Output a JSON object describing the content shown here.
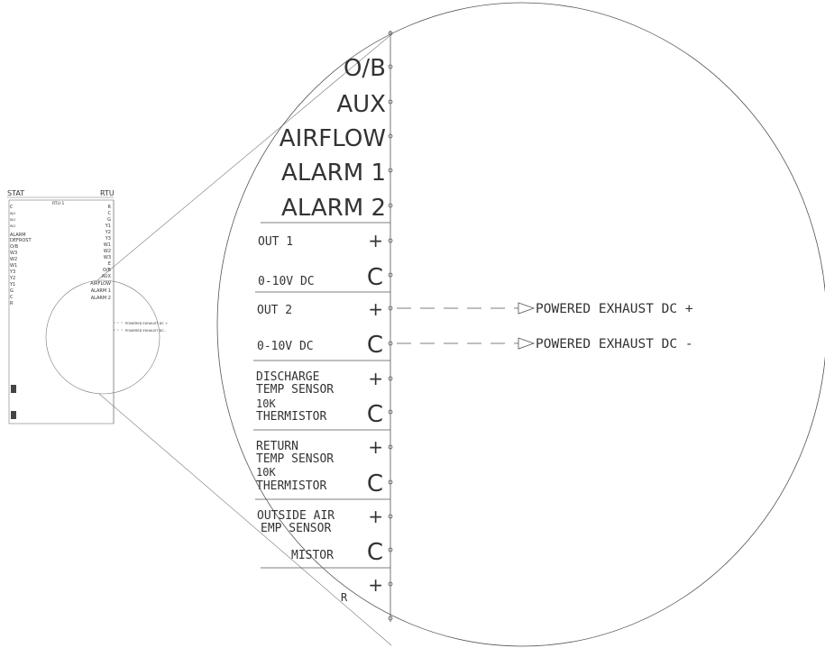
{
  "thumbnail": {
    "stat_label": "STAT",
    "rtu_label": "RTU",
    "rtu_id": "RTU-1",
    "left_terminals": [
      "C",
      "W/2",
      "W/2",
      "W/2",
      "ALARM",
      "DEFROST",
      "O/B",
      "W3",
      "W2",
      "W1",
      "Y3",
      "Y2",
      "Y1",
      "G",
      "C",
      "R"
    ],
    "right_terminals": [
      "R",
      "C",
      "G",
      "Y1",
      "Y2",
      "Y3",
      "W1",
      "W2",
      "W3",
      "E",
      "O/B",
      "AUX",
      "AIRFLOW",
      "ALARM 1",
      "ALARM 2"
    ],
    "exhaust_plus": "POWERED EXHAUST DC +",
    "exhaust_minus": "POWERED EXHAUST DC -"
  },
  "detail": {
    "large_labels": [
      "O/B",
      "AUX",
      "AIRFLOW",
      "ALARM 1",
      "ALARM 2"
    ],
    "groups": [
      {
        "lines": [
          "OUT 1"
        ],
        "lines2": [
          "0-10V DC"
        ],
        "plus": "+",
        "common": "C"
      },
      {
        "lines": [
          "OUT 2"
        ],
        "lines2": [
          "0-10V DC"
        ],
        "plus": "+",
        "common": "C"
      },
      {
        "lines": [
          "DISCHARGE",
          "TEMP SENSOR"
        ],
        "lines2": [
          "10K",
          "THERMISTOR"
        ],
        "plus": "+",
        "common": "C"
      },
      {
        "lines": [
          "RETURN",
          "TEMP SENSOR"
        ],
        "lines2": [
          "10K",
          "THERMISTOR"
        ],
        "plus": "+",
        "common": "C"
      },
      {
        "lines": [
          "OUTSIDE AIR",
          "EMP SENSOR"
        ],
        "lines2": [
          "MISTOR"
        ],
        "plus": "+",
        "common": "C"
      },
      {
        "lines": [],
        "lines2": [
          "R"
        ],
        "plus": "+",
        "common": ""
      }
    ],
    "exhaust_plus": "POWERED EXHAUST DC +",
    "exhaust_minus": "POWERED EXHAUST DC -"
  }
}
